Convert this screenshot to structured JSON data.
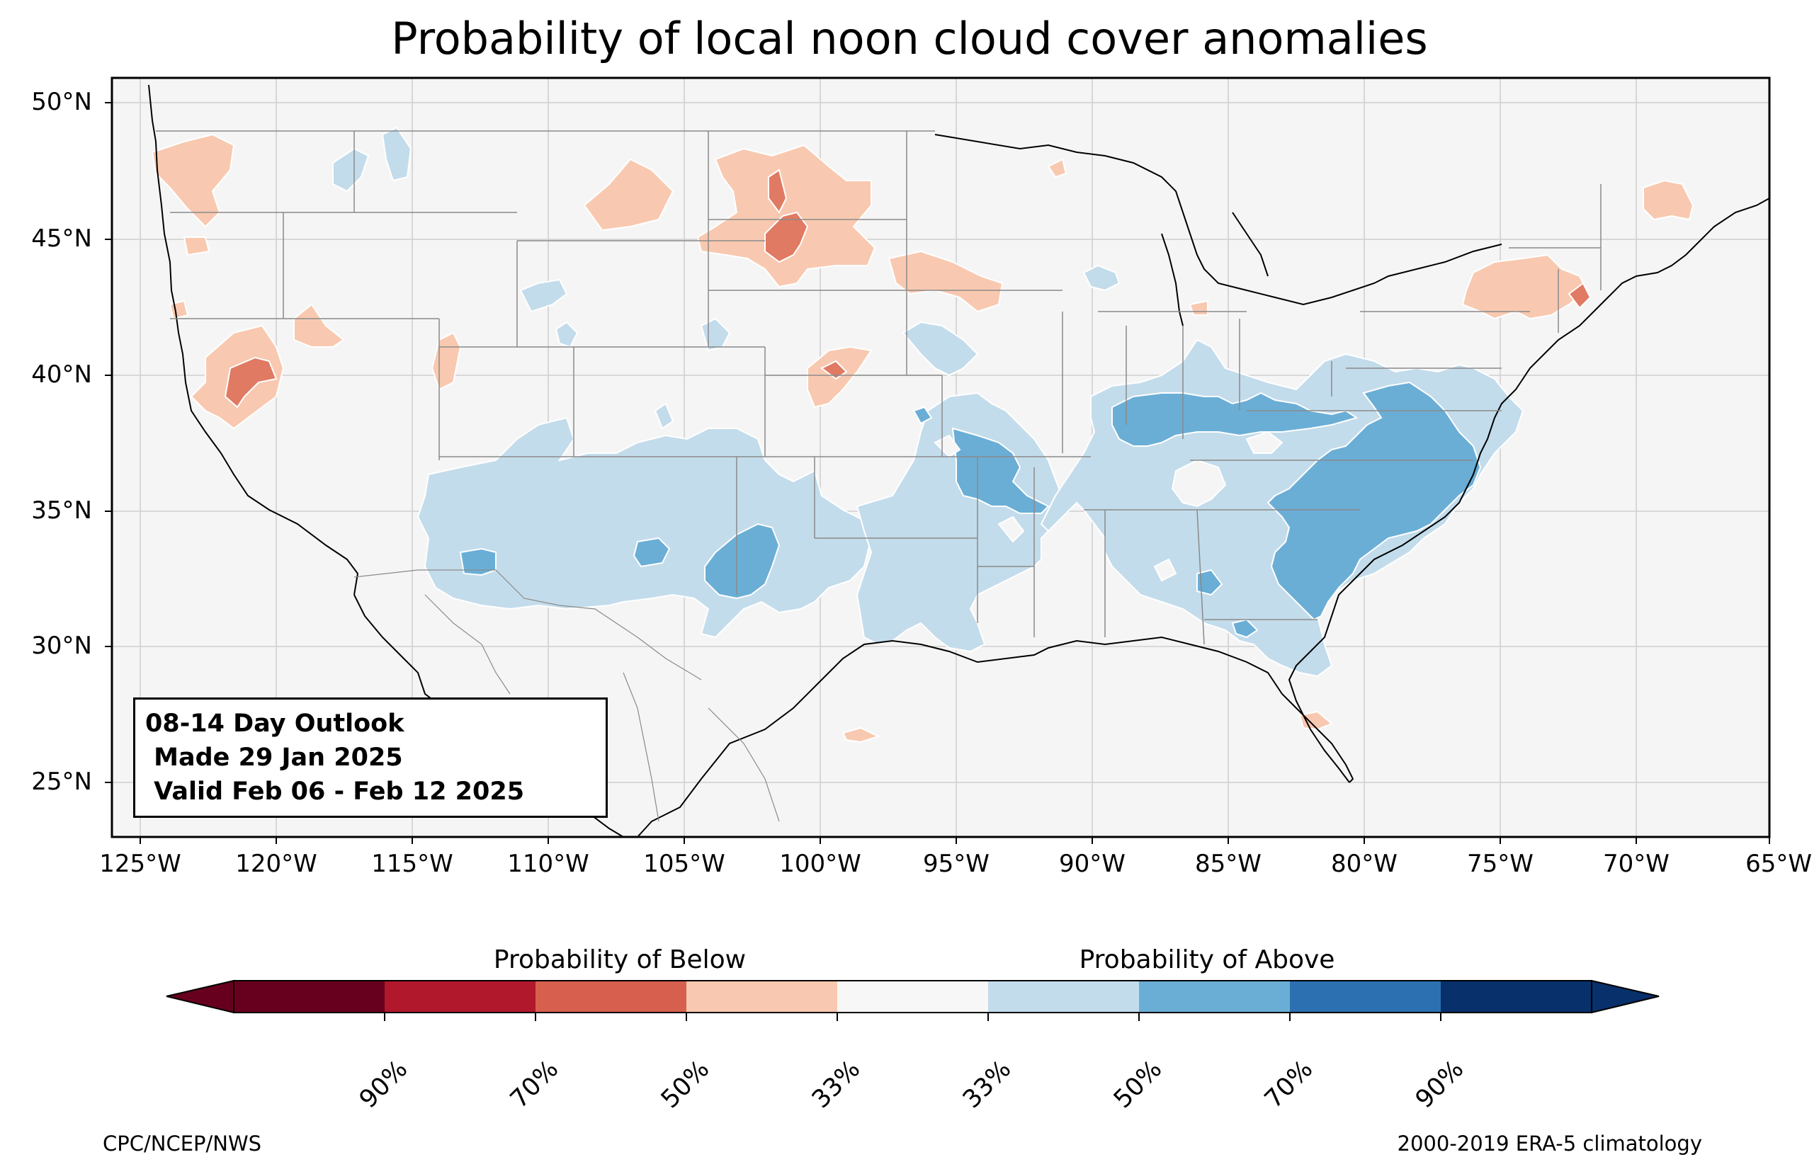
{
  "title": "Probability of local noon cloud cover anomalies",
  "latitude_labels": [
    "50°N",
    "45°N",
    "40°N",
    "35°N",
    "30°N",
    "25°N"
  ],
  "longitude_labels": [
    "125°W",
    "120°W",
    "115°W",
    "110°W",
    "105°W",
    "100°W",
    "95°W",
    "90°W",
    "85°W",
    "80°W",
    "75°W",
    "70°W",
    "65°W"
  ],
  "outlook": {
    "line1": "08-14 Day Outlook",
    "line2": " Made 29 Jan 2025",
    "line3": " Valid Feb 06 - Feb 12 2025"
  },
  "colorbar": {
    "below_label": "Probability of Below",
    "above_label": "Probability of Above",
    "tick_labels": [
      "90%",
      "70%",
      "50%",
      "33%",
      "33%",
      "50%",
      "70%",
      "90%"
    ],
    "colors": [
      "#67001f",
      "#b2182b",
      "#d6604d",
      "#f4a582",
      "#f7f7f7",
      "#c3dceb",
      "#6aaed6",
      "#2c70b1",
      "#08306b"
    ]
  },
  "map_colors": {
    "background": "#f5f5f5",
    "below_33": "#f8c9b0",
    "below_50": "#e07a63",
    "above_33": "#c3dceb",
    "above_50": "#6aaed6"
  },
  "footer": {
    "left": "CPC/NCEP/NWS",
    "right": "2000-2019 ERA-5 climatology"
  }
}
